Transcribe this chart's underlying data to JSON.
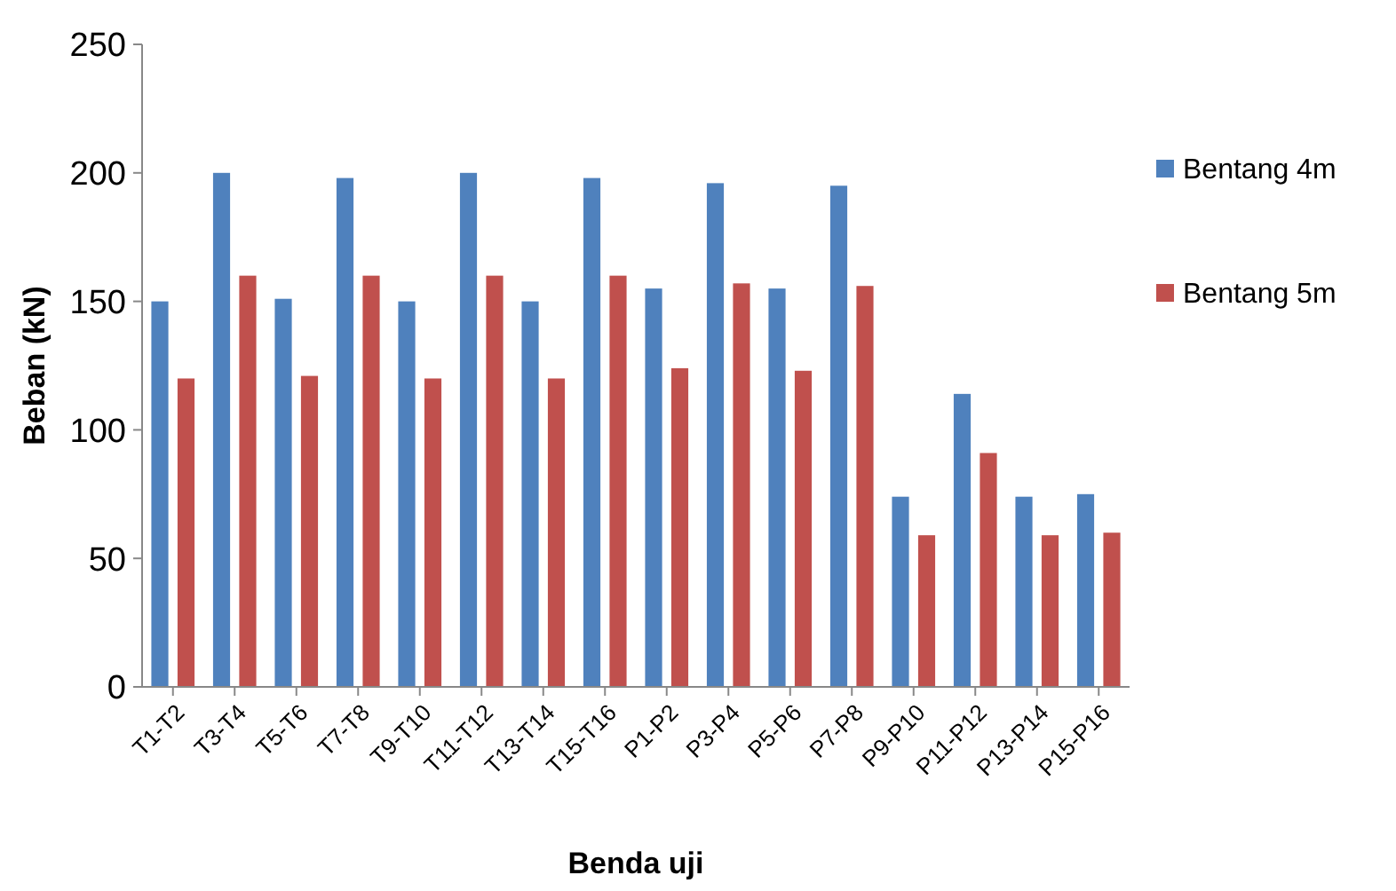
{
  "chart_data": {
    "type": "bar",
    "xlabel": "Benda uji",
    "ylabel": "Beban (kN)",
    "categories": [
      "T1-T2",
      "T3-T4",
      "T5-T6",
      "T7-T8",
      "T9-T10",
      "T11-T12",
      "T13-T14",
      "T15-T16",
      "P1-P2",
      "P3-P4",
      "P5-P6",
      "P7-P8",
      "P9-P10",
      "P11-P12",
      "P13-P14",
      "P15-P16"
    ],
    "series": [
      {
        "name": "Bentang 4m",
        "color": "#4f81bd",
        "values": [
          150,
          200,
          151,
          198,
          150,
          200,
          150,
          198,
          155,
          196,
          155,
          195,
          74,
          114,
          74,
          75
        ]
      },
      {
        "name": "Bentang 5m",
        "color": "#c0504d",
        "values": [
          120,
          160,
          121,
          160,
          120,
          160,
          120,
          160,
          124,
          157,
          123,
          156,
          59,
          91,
          59,
          60
        ]
      }
    ],
    "ylim": [
      0,
      250
    ],
    "yticks": [
      0,
      50,
      100,
      150,
      200,
      250
    ],
    "grid": false,
    "legend": "right"
  }
}
